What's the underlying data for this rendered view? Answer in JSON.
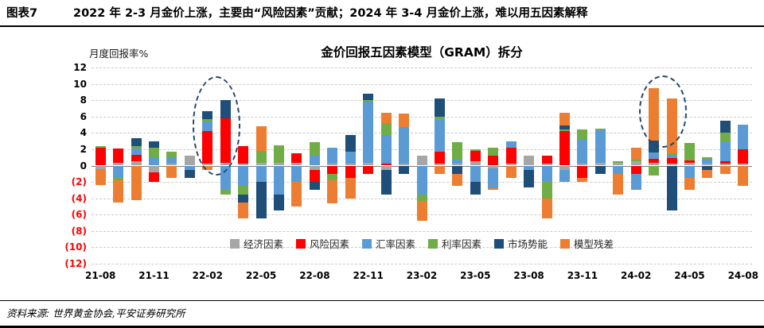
{
  "header": {
    "figure_label": "图表7",
    "title": "2022 年 2-3 月金价上涨，主要由“风险因素”贡献；2024 年 3-4 月金价上涨，难以用五因素解释"
  },
  "footer": {
    "source": "资料来源: 世界黄金协会,平安证券研究所"
  },
  "chart_data": {
    "type": "bar",
    "stacked": true,
    "title": "金价回报五因素模型（GRAM）拆分",
    "ylabel": "月度回报率%",
    "ylim": [
      -12,
      12
    ],
    "ytick_step": 2,
    "negative_tick_format": "parentheses_red",
    "grid": "dashed-horizontal",
    "legend_position": "inside-bottom-center",
    "categories": [
      "21-08",
      "21-09",
      "21-10",
      "21-11",
      "21-12",
      "22-01",
      "22-02",
      "22-03",
      "22-04",
      "22-05",
      "22-06",
      "22-07",
      "22-08",
      "22-09",
      "22-10",
      "22-11",
      "22-12",
      "23-01",
      "23-02",
      "23-03",
      "23-04",
      "23-05",
      "23-06",
      "23-07",
      "23-08",
      "23-09",
      "23-10",
      "23-11",
      "23-12",
      "24-01",
      "24-02",
      "24-03",
      "24-04",
      "24-05",
      "24-06",
      "24-07",
      "24-08"
    ],
    "xtick_labels": [
      "21-08",
      "21-11",
      "22-02",
      "22-05",
      "22-08",
      "22-11",
      "23-02",
      "23-05",
      "23-08",
      "23-11",
      "24-02",
      "24-05",
      "24-08"
    ],
    "series": [
      {
        "name": "经济因素",
        "color": "#A6A6A6",
        "values": [
          -0.4,
          0.3,
          0.5,
          -0.8,
          0.2,
          1.2,
          0.2,
          0.3,
          0.2,
          0.3,
          0.3,
          0.3,
          -0.5,
          0.2,
          0.2,
          0.3,
          -0.5,
          0.2,
          1.2,
          0.2,
          0.2,
          0.5,
          -0.3,
          0.2,
          1.2,
          0.2,
          -0.5,
          0.2,
          0.3,
          0.3,
          0.5,
          0.3,
          0.2,
          0.3,
          0.2,
          0.2,
          0.2
        ]
      },
      {
        "name": "风险因素",
        "color": "#FF0000",
        "values": [
          2.2,
          1.8,
          0.8,
          -1.2,
          0.0,
          0.0,
          4.0,
          5.5,
          2.2,
          0.0,
          0.0,
          1.2,
          -1.5,
          -1.0,
          -1.5,
          -1.0,
          0.2,
          0.0,
          0.0,
          1.5,
          0.0,
          1.3,
          1.2,
          2.0,
          0.0,
          1.0,
          4.2,
          -1.5,
          0.0,
          0.0,
          -1.0,
          0.5,
          0.7,
          0.3,
          0.0,
          0.3,
          1.8
        ]
      },
      {
        "name": "汇率因素",
        "color": "#5B9BD5",
        "values": [
          0.0,
          -1.5,
          0.8,
          1.0,
          0.8,
          -0.5,
          1.2,
          -3.0,
          -2.5,
          -2.0,
          -3.5,
          -2.0,
          1.2,
          2.0,
          1.5,
          7.5,
          3.5,
          4.5,
          -3.5,
          4.0,
          0.5,
          -2.0,
          -2.5,
          0.8,
          -0.5,
          -2.0,
          -1.5,
          3.0,
          4.0,
          -1.0,
          -2.0,
          0.8,
          0.4,
          -1.5,
          0.5,
          2.5,
          3.0
        ]
      },
      {
        "name": "利率因素",
        "color": "#70AD47",
        "values": [
          0.2,
          -0.3,
          0.3,
          1.2,
          0.7,
          0.0,
          0.3,
          -0.5,
          -1.0,
          1.5,
          2.2,
          0.0,
          1.7,
          -0.8,
          0.0,
          0.2,
          1.5,
          0.0,
          -0.8,
          0.3,
          2.2,
          0.2,
          1.0,
          0.0,
          0.0,
          -2.0,
          0.2,
          1.2,
          0.2,
          0.2,
          0.2,
          -1.2,
          0.2,
          2.2,
          0.3,
          1.0,
          0.0
        ]
      },
      {
        "name": "市场势能",
        "color": "#1F4E79",
        "values": [
          0.0,
          0.0,
          1.0,
          0.8,
          0.0,
          -1.0,
          1.0,
          2.2,
          -1.0,
          -4.5,
          -2.0,
          0.0,
          -1.0,
          0.0,
          2.0,
          0.8,
          -3.0,
          -1.0,
          0.0,
          2.2,
          -1.0,
          -1.5,
          0.0,
          0.0,
          -2.2,
          0.0,
          0.5,
          0.0,
          -1.0,
          0.0,
          0.0,
          1.5,
          -5.5,
          0.0,
          -0.5,
          1.5,
          0.0
        ]
      },
      {
        "name": "模型残差",
        "color": "#ED7D31",
        "values": [
          -2.0,
          -2.7,
          -4.2,
          0.0,
          -1.5,
          0.0,
          -0.5,
          0.0,
          -2.0,
          3.0,
          0.0,
          -3.0,
          0.0,
          -2.8,
          -2.5,
          0.0,
          1.3,
          1.7,
          -2.5,
          -1.0,
          -1.5,
          0.0,
          -0.2,
          -1.5,
          0.0,
          -2.5,
          1.6,
          -0.5,
          0.0,
          -2.5,
          1.5,
          6.4,
          6.7,
          -1.5,
          -1.0,
          -1.0,
          -2.5
        ]
      }
    ],
    "annotations": [
      {
        "label": "dashed-ellipse-1",
        "months": [
          "22-02",
          "22-03"
        ],
        "y_top": 10.9,
        "y_bottom": -1.2
      },
      {
        "label": "dashed-ellipse-2",
        "months": [
          "24-03",
          "24-04"
        ],
        "y_top": 11.0,
        "y_bottom": 2.2
      }
    ]
  }
}
